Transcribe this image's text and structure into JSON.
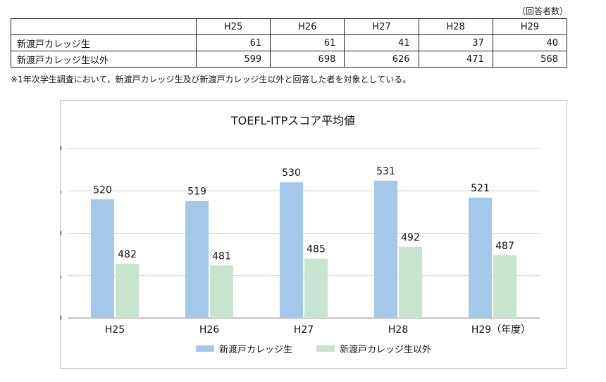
{
  "table": {
    "unit_note": "（回答者数）",
    "headers": [
      "",
      "H25",
      "H26",
      "H27",
      "H28",
      "H29"
    ],
    "rows": [
      {
        "label": "新渡戸カレッジ生",
        "values": [
          "61",
          "61",
          "41",
          "37",
          "40"
        ]
      },
      {
        "label": "新渡戸カレッジ生以外",
        "values": [
          "599",
          "698",
          "626",
          "471",
          "568"
        ]
      }
    ],
    "footnote": "※1年次学生調査において，新渡戸カレッジ生及び新渡戸カレッジ生以外と回答した者を対象としている。"
  },
  "chart_data": {
    "type": "bar",
    "title": "TOEFL-ITPスコア平均値",
    "categories": [
      "H25",
      "H26",
      "H27",
      "H28",
      "H29（年度）"
    ],
    "series": [
      {
        "name": "新渡戸カレッジ生",
        "values": [
          520,
          519,
          530,
          531,
          521
        ],
        "color": "#a3c8ea"
      },
      {
        "name": "新渡戸カレッジ生以外",
        "values": [
          482,
          481,
          485,
          492,
          487
        ],
        "color": "#c7e4cf"
      }
    ],
    "ylim": [
      450,
      550
    ],
    "yticks": [
      "450",
      "475",
      "500",
      "525",
      "550"
    ],
    "grid": true,
    "legend_position": "bottom"
  }
}
